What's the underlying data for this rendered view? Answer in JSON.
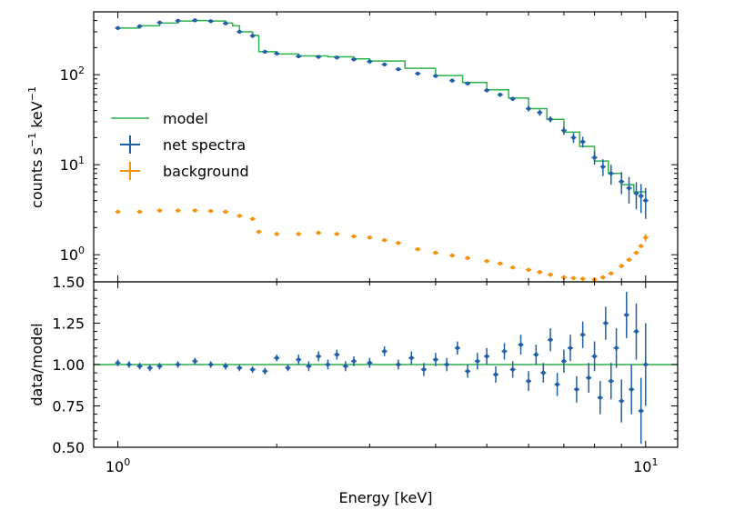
{
  "chart_data": [
    {
      "panel": "top",
      "type": "line",
      "xscale": "log",
      "yscale": "log",
      "xlim": [
        0.9,
        11.5
      ],
      "ylim": [
        0.5,
        500
      ],
      "ylabel_main": "counts s",
      "ylabel_sup1": "−1",
      "ylabel_mid": " keV",
      "ylabel_sup2": "−1",
      "yticks": [
        {
          "value": 1,
          "base": "10",
          "exp": "0"
        },
        {
          "value": 10,
          "base": "10",
          "exp": "1"
        },
        {
          "value": 100,
          "base": "10",
          "exp": "2"
        }
      ],
      "legend": {
        "placement": "center-left",
        "entries": [
          {
            "key": "model",
            "label": "model"
          },
          {
            "key": "net",
            "label": "net spectra"
          },
          {
            "key": "bg",
            "label": "background"
          }
        ]
      },
      "series": [
        {
          "name": "model",
          "color": "#2bb24c",
          "style": "step",
          "x": [
            1.0,
            1.1,
            1.2,
            1.3,
            1.4,
            1.5,
            1.6,
            1.65,
            1.7,
            1.8,
            1.84,
            1.85,
            2.0,
            2.2,
            2.5,
            2.8,
            3.0,
            3.5,
            4.0,
            4.5,
            5.0,
            5.5,
            6.0,
            6.5,
            7.0,
            7.5,
            8.0,
            8.5,
            9.0,
            9.5,
            10.0
          ],
          "y": [
            330,
            350,
            375,
            395,
            400,
            395,
            375,
            350,
            300,
            275,
            270,
            180,
            170,
            162,
            158,
            150,
            142,
            118,
            98,
            82,
            68,
            55,
            42,
            32,
            23,
            16,
            11,
            8,
            6,
            5,
            4.2
          ]
        },
        {
          "name": "net spectra",
          "color": "#1f5fa6",
          "style": "errorbar",
          "x": [
            1.0,
            1.1,
            1.2,
            1.3,
            1.4,
            1.5,
            1.6,
            1.7,
            1.8,
            1.9,
            2.0,
            2.2,
            2.4,
            2.6,
            2.8,
            3.0,
            3.2,
            3.4,
            3.7,
            4.0,
            4.3,
            4.6,
            5.0,
            5.3,
            5.6,
            6.0,
            6.3,
            6.6,
            7.0,
            7.3,
            7.6,
            8.0,
            8.3,
            8.6,
            9.0,
            9.3,
            9.6,
            9.8,
            10.0
          ],
          "y": [
            330,
            345,
            380,
            398,
            402,
            393,
            372,
            300,
            270,
            180,
            172,
            160,
            158,
            155,
            148,
            140,
            130,
            115,
            103,
            97,
            86,
            80,
            67,
            60,
            54,
            42,
            38,
            32,
            24,
            20,
            18,
            12,
            9.5,
            8,
            6.5,
            5.5,
            4.8,
            4.5,
            4.0
          ],
          "yerr": [
            10,
            10,
            12,
            12,
            12,
            12,
            11,
            9,
            9,
            6,
            6,
            5,
            5,
            5,
            5,
            5,
            5,
            4,
            4,
            4,
            3.5,
            3.5,
            3,
            3,
            3,
            3,
            3,
            2.5,
            2.5,
            2.5,
            2.5,
            2,
            2,
            2,
            1.8,
            1.8,
            1.6,
            1.6,
            1.5
          ]
        },
        {
          "name": "background",
          "color": "#f5920f",
          "style": "errorbar",
          "x": [
            1.0,
            1.1,
            1.2,
            1.3,
            1.4,
            1.5,
            1.6,
            1.7,
            1.8,
            1.85,
            2.0,
            2.2,
            2.4,
            2.6,
            2.8,
            3.0,
            3.2,
            3.4,
            3.7,
            4.0,
            4.3,
            4.6,
            5.0,
            5.3,
            5.6,
            6.0,
            6.3,
            6.6,
            7.0,
            7.3,
            7.6,
            8.0,
            8.3,
            8.6,
            9.0,
            9.3,
            9.6,
            9.8,
            10.0
          ],
          "y": [
            3.0,
            3.0,
            3.1,
            3.1,
            3.1,
            3.05,
            3.0,
            2.7,
            2.5,
            1.8,
            1.7,
            1.7,
            1.75,
            1.7,
            1.6,
            1.55,
            1.45,
            1.35,
            1.15,
            1.05,
            0.98,
            0.92,
            0.85,
            0.8,
            0.72,
            0.68,
            0.64,
            0.6,
            0.56,
            0.55,
            0.54,
            0.53,
            0.56,
            0.62,
            0.75,
            0.88,
            1.05,
            1.25,
            1.55
          ],
          "yerr": [
            0.05,
            0.05,
            0.05,
            0.05,
            0.05,
            0.05,
            0.05,
            0.05,
            0.05,
            0.04,
            0.04,
            0.04,
            0.04,
            0.04,
            0.04,
            0.04,
            0.04,
            0.04,
            0.04,
            0.03,
            0.03,
            0.03,
            0.03,
            0.03,
            0.03,
            0.03,
            0.03,
            0.03,
            0.03,
            0.03,
            0.03,
            0.03,
            0.03,
            0.03,
            0.04,
            0.04,
            0.05,
            0.06,
            0.15
          ]
        }
      ]
    },
    {
      "panel": "bottom",
      "type": "scatter",
      "xscale": "log",
      "yscale": "linear",
      "xlim": [
        0.9,
        11.5
      ],
      "ylim": [
        0.5,
        1.5
      ],
      "ylabel": "data/model",
      "xlabel": "Energy [keV]",
      "yticks": [
        "0.50",
        "0.75",
        "1.00",
        "1.25",
        "1.50"
      ],
      "xticks": [
        {
          "value": 1,
          "base": "10",
          "exp": "0"
        },
        {
          "value": 10,
          "base": "10",
          "exp": "1"
        }
      ],
      "reference_line": {
        "y": 1.0,
        "color": "#2bb24c"
      },
      "series": [
        {
          "name": "ratio",
          "color": "#1f5fa6",
          "style": "errorbar",
          "x": [
            1.0,
            1.05,
            1.1,
            1.15,
            1.2,
            1.3,
            1.4,
            1.5,
            1.6,
            1.7,
            1.8,
            1.9,
            2.0,
            2.1,
            2.2,
            2.3,
            2.4,
            2.5,
            2.6,
            2.7,
            2.8,
            3.0,
            3.2,
            3.4,
            3.6,
            3.8,
            4.0,
            4.2,
            4.4,
            4.6,
            4.8,
            5.0,
            5.2,
            5.4,
            5.6,
            5.8,
            6.0,
            6.2,
            6.4,
            6.6,
            6.8,
            7.0,
            7.2,
            7.4,
            7.6,
            7.8,
            8.0,
            8.2,
            8.4,
            8.6,
            8.8,
            9.0,
            9.2,
            9.4,
            9.6,
            9.8,
            10.0
          ],
          "y": [
            1.01,
            1.0,
            0.99,
            0.98,
            0.99,
            1.0,
            1.02,
            1.0,
            0.99,
            0.98,
            0.97,
            0.96,
            1.04,
            0.98,
            1.03,
            0.99,
            1.05,
            1.0,
            1.06,
            0.99,
            1.02,
            1.01,
            1.08,
            1.0,
            1.04,
            0.97,
            1.03,
            1.0,
            1.1,
            0.96,
            1.02,
            1.05,
            0.94,
            1.08,
            0.97,
            1.12,
            0.9,
            1.06,
            0.95,
            1.15,
            0.88,
            1.02,
            1.1,
            0.85,
            1.18,
            0.92,
            1.05,
            0.8,
            1.25,
            0.9,
            1.1,
            0.78,
            1.3,
            0.85,
            1.2,
            0.72,
            1.0
          ],
          "yerr": [
            0.02,
            0.02,
            0.02,
            0.02,
            0.02,
            0.02,
            0.02,
            0.02,
            0.02,
            0.02,
            0.02,
            0.02,
            0.02,
            0.02,
            0.03,
            0.03,
            0.03,
            0.03,
            0.03,
            0.03,
            0.03,
            0.03,
            0.03,
            0.03,
            0.04,
            0.04,
            0.04,
            0.04,
            0.04,
            0.04,
            0.05,
            0.05,
            0.05,
            0.05,
            0.05,
            0.06,
            0.06,
            0.06,
            0.06,
            0.07,
            0.07,
            0.07,
            0.08,
            0.08,
            0.08,
            0.09,
            0.09,
            0.1,
            0.1,
            0.11,
            0.12,
            0.13,
            0.14,
            0.15,
            0.17,
            0.2,
            0.25
          ]
        }
      ]
    }
  ]
}
